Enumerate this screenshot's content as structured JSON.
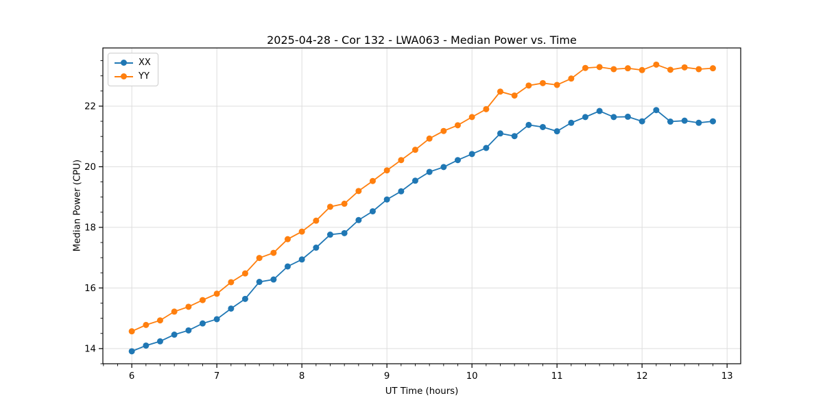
{
  "figure": {
    "background": "#ffffff"
  },
  "chart_data": {
    "type": "line",
    "title": "2025-04-28 - Cor 132 - LWA063 - Median Power vs. Time",
    "xlabel": "UT Time (hours)",
    "ylabel": "Median Power (CPU)",
    "xlim": [
      5.66,
      13.16
    ],
    "ylim": [
      13.5,
      23.92
    ],
    "xticks": [
      6,
      7,
      8,
      9,
      10,
      11,
      12,
      13
    ],
    "yticks": [
      14,
      16,
      18,
      20,
      22
    ],
    "x_minor_step": 0.1666667,
    "y_minor_step": 0.5,
    "grid": true,
    "grid_color": "#dddddd",
    "spine_color": "#000000",
    "legend_position": "upper-left",
    "x": [
      6.0,
      6.167,
      6.333,
      6.5,
      6.667,
      6.833,
      7.0,
      7.167,
      7.333,
      7.5,
      7.667,
      7.833,
      8.0,
      8.167,
      8.333,
      8.5,
      8.667,
      8.833,
      9.0,
      9.167,
      9.333,
      9.5,
      9.667,
      9.833,
      10.0,
      10.167,
      10.333,
      10.5,
      10.667,
      10.833,
      11.0,
      11.167,
      11.333,
      11.5,
      11.667,
      11.833,
      12.0,
      12.167,
      12.333,
      12.5,
      12.667,
      12.833
    ],
    "series": [
      {
        "name": "XX",
        "color": "#1f77b4",
        "values": [
          13.91,
          14.1,
          14.24,
          14.46,
          14.6,
          14.83,
          14.97,
          15.32,
          15.64,
          16.2,
          16.28,
          16.71,
          16.94,
          17.33,
          17.76,
          17.81,
          18.24,
          18.53,
          18.92,
          19.19,
          19.54,
          19.83,
          19.99,
          20.22,
          20.42,
          20.62,
          21.1,
          21.01,
          21.38,
          21.31,
          21.17,
          21.45,
          21.64,
          21.84,
          21.64,
          21.65,
          21.5,
          21.87,
          21.49,
          21.52,
          21.45,
          21.5
        ]
      },
      {
        "name": "YY",
        "color": "#ff7f0e",
        "values": [
          14.57,
          14.78,
          14.93,
          15.22,
          15.38,
          15.6,
          15.81,
          16.19,
          16.48,
          16.99,
          17.16,
          17.61,
          17.86,
          18.22,
          18.68,
          18.78,
          19.2,
          19.53,
          19.88,
          20.22,
          20.56,
          20.93,
          21.18,
          21.37,
          21.64,
          21.9,
          22.48,
          22.35,
          22.68,
          22.76,
          22.7,
          22.91,
          23.26,
          23.29,
          23.22,
          23.25,
          23.19,
          23.37,
          23.2,
          23.28,
          23.22,
          23.25
        ]
      }
    ]
  }
}
